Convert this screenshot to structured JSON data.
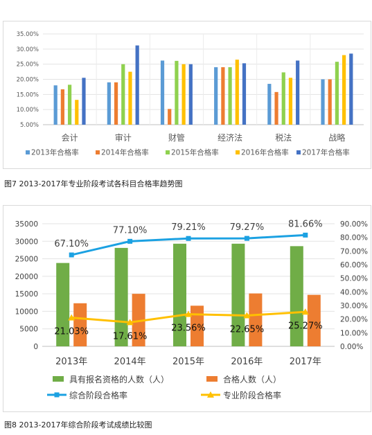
{
  "chart_data": [
    {
      "type": "bar",
      "categories": [
        "会计",
        "审计",
        "财管",
        "经济法",
        "税法",
        "战略"
      ],
      "series": [
        {
          "name": "2013年合格率",
          "values": [
            18.0,
            19.0,
            26.2,
            24.0,
            18.5,
            20.0
          ]
        },
        {
          "name": "2014年合格率",
          "values": [
            16.7,
            19.0,
            10.2,
            24.0,
            15.8,
            20.0
          ]
        },
        {
          "name": "2015年合格率",
          "values": [
            18.2,
            25.0,
            26.1,
            24.0,
            22.3,
            25.8
          ]
        },
        {
          "name": "2016年合格率",
          "values": [
            13.2,
            22.5,
            25.0,
            26.5,
            20.5,
            28.0
          ]
        },
        {
          "name": "2017年合格率",
          "values": [
            20.5,
            31.2,
            25.0,
            25.3,
            26.2,
            28.5
          ]
        }
      ],
      "colors": [
        "#5b9bd5",
        "#ed7d31",
        "#8fd14f",
        "#ffc000",
        "#4472c4"
      ],
      "yticks": [
        "5.00%",
        "10.00%",
        "15.00%",
        "20.00%",
        "25.00%",
        "30.00%",
        "35.00%"
      ],
      "ylim": [
        5,
        35
      ],
      "grid": true,
      "legend_position": "bottom"
    },
    {
      "type": "bar",
      "categories": [
        "2013年",
        "2014年",
        "2015年",
        "2016年",
        "2017年"
      ],
      "series": [
        {
          "name": "具有报名资格的人数（人）",
          "kind": "bar",
          "axis": "left",
          "color": "#70ad47",
          "values": [
            23800,
            28100,
            29300,
            29300,
            28600
          ]
        },
        {
          "name": "合格人数（人）",
          "kind": "bar",
          "axis": "left",
          "color": "#ed7d31",
          "values": [
            12300,
            15000,
            11600,
            15100,
            14700
          ]
        },
        {
          "name": "综合阶段合格率",
          "kind": "line",
          "axis": "right",
          "color": "#1ba1e2",
          "marker": "square",
          "values": [
            67.1,
            77.1,
            79.21,
            79.27,
            81.66
          ],
          "labels": [
            "67.10%",
            "77.10%",
            "79.21%",
            "79.27%",
            "81.66%"
          ]
        },
        {
          "name": "专业阶段合格率",
          "kind": "line",
          "axis": "right",
          "color": "#ffc000",
          "marker": "triangle",
          "values": [
            21.03,
            17.61,
            23.56,
            22.65,
            25.27
          ],
          "labels": [
            "21.03%",
            "17.61%",
            "23.56%",
            "22.65%",
            "25.27%"
          ]
        }
      ],
      "yticks_left": [
        "0",
        "5000",
        "10000",
        "15000",
        "20000",
        "25000",
        "30000",
        "35000"
      ],
      "yticks_right": [
        "0.00%",
        "10.00%",
        "20.00%",
        "30.00%",
        "40.00%",
        "50.00%",
        "60.00%",
        "70.00%",
        "80.00%",
        "90.00%"
      ],
      "ylim_left": [
        0,
        35000
      ],
      "ylim_right": [
        0,
        90
      ],
      "grid": true,
      "legend_position": "bottom"
    }
  ],
  "captions": {
    "fig7": "图7  2013-2017年专业阶段考试各科目合格率趋势图",
    "fig8": "图8  2013-2017年综合阶段考试成绩比较图"
  }
}
